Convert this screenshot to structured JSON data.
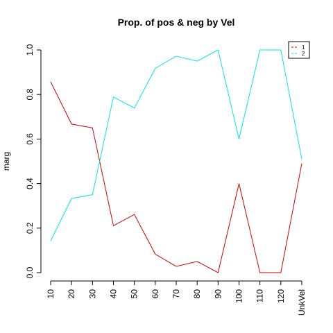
{
  "chart_data": {
    "type": "line",
    "title": "Prop. of pos & neg by Vel",
    "xlabel": "",
    "ylabel": "marg",
    "categories": [
      "10",
      "20",
      "30",
      "40",
      "50",
      "60",
      "70",
      "80",
      "90",
      "100",
      "110",
      "120",
      "UnkVel"
    ],
    "ylim": [
      0,
      1
    ],
    "yticks": [
      "0.0",
      "0.2",
      "0.4",
      "0.6",
      "0.8",
      "1.0"
    ],
    "grid": false,
    "legend_position": "top-right",
    "series": [
      {
        "name": "1",
        "color": "#cc0000",
        "values": [
          0.857,
          0.667,
          0.65,
          0.211,
          0.261,
          0.083,
          0.028,
          0.05,
          0.0,
          0.4,
          0.0,
          0.0,
          0.49
        ]
      },
      {
        "name": "2",
        "color": "#00e5ee",
        "values": [
          0.143,
          0.333,
          0.35,
          0.789,
          0.739,
          0.917,
          0.972,
          0.95,
          1.0,
          0.6,
          1.0,
          1.0,
          0.51
        ]
      }
    ]
  }
}
